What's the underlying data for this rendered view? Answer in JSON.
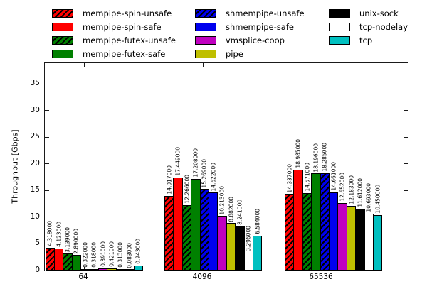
{
  "chart_data": {
    "type": "bar",
    "title": "",
    "xlabel": "",
    "ylabel": "Throughput [Gbps]",
    "ylim": [
      0,
      38.9
    ],
    "yticks": [
      0,
      5,
      10,
      15,
      20,
      25,
      30,
      35
    ],
    "grid": false,
    "legend_position": "top",
    "value_label_format": "6-decimals-rotated",
    "categories": [
      "64",
      "4096",
      "65536"
    ],
    "series": [
      {
        "name": "mempipe-spin-unsafe",
        "color": "#ff0000",
        "hatch": true,
        "values": [
          4.318,
          14.017,
          14.337
        ]
      },
      {
        "name": "mempipe-spin-safe",
        "color": "#ff0000",
        "hatch": false,
        "values": [
          4.123,
          17.449,
          18.985
        ]
      },
      {
        "name": "mempipe-futex-unsafe",
        "color": "#008000",
        "hatch": true,
        "values": [
          3.139,
          12.266,
          14.571
        ]
      },
      {
        "name": "mempipe-futex-safe",
        "color": "#008000",
        "hatch": false,
        "values": [
          2.89,
          17.208,
          18.196
        ]
      },
      {
        "name": "shmempipe-unsafe",
        "color": "#0000ee",
        "hatch": true,
        "values": [
          0.322,
          15.269,
          18.285
        ]
      },
      {
        "name": "shmempipe-safe",
        "color": "#0000ee",
        "hatch": false,
        "values": [
          0.318,
          14.622,
          14.661
        ]
      },
      {
        "name": "vmsplice-coop",
        "color": "#c000c0",
        "hatch": false,
        "values": [
          0.391,
          10.213,
          12.652
        ]
      },
      {
        "name": "pipe",
        "color": "#bfbf00",
        "hatch": false,
        "values": [
          0.421,
          8.882,
          12.183
        ]
      },
      {
        "name": "unix-sock",
        "color": "#000000",
        "hatch": false,
        "values": [
          0.313,
          8.241,
          11.612
        ]
      },
      {
        "name": "tcp-nodelay",
        "color": "#ffffff",
        "hatch": false,
        "values": [
          0.083,
          3.296,
          10.693
        ]
      },
      {
        "name": "tcp",
        "color": "#00c0c0",
        "hatch": false,
        "values": [
          0.943,
          6.584,
          10.45
        ]
      }
    ],
    "legend_columns": [
      [
        0,
        1,
        2,
        3
      ],
      [
        4,
        5,
        6,
        7
      ],
      [
        8,
        9,
        10
      ]
    ]
  }
}
